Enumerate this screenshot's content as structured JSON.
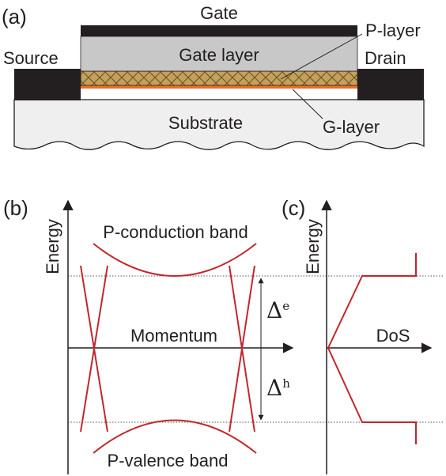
{
  "panel_a": {
    "tag": "(a)",
    "gate": "Gate",
    "gate_layer": "Gate layer",
    "p_layer": "P-layer",
    "source": "Source",
    "drain": "Drain",
    "substrate": "Substrate",
    "g_layer": "G-layer"
  },
  "panel_b": {
    "tag": "(b)",
    "energy_axis": "Energy",
    "momentum_axis": "Momentum",
    "conduction_band": "P-conduction band",
    "valence_band": "P-valence band",
    "delta_e_symbol": "Δ",
    "delta_e_sup": "e",
    "delta_h_symbol": "Δ",
    "delta_h_sup": "h"
  },
  "panel_c": {
    "tag": "(c)",
    "energy_axis": "Energy",
    "dos_axis": "DoS"
  },
  "colors": {
    "band_red": "#c1272d",
    "gate_metal": "#231f20",
    "gate_layer": "#c8c8c9",
    "substrate": "#efefef",
    "p_layer": "#c4a15a",
    "g_layer": "#e8702a"
  }
}
